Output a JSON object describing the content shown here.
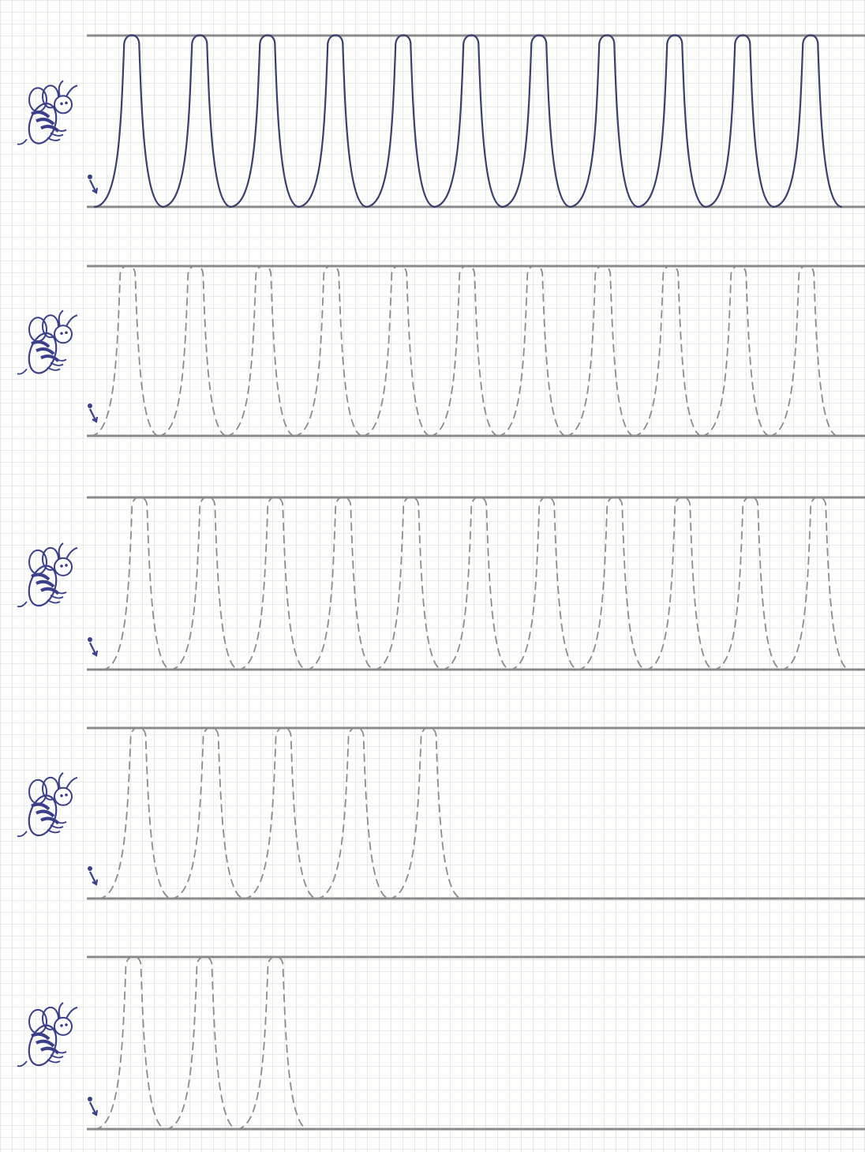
{
  "worksheet": {
    "colors": {
      "paper": "#fdfdfc",
      "grid": "#c9d3cd",
      "guide_line": "#8a8a8a",
      "model_ink": "#3a3f6e",
      "dashed_ink": "#8c8c8c",
      "bee_ink": "#3a3f8a"
    },
    "rows": [
      {
        "style": "solid",
        "loops": 11,
        "icon": "bee-icon"
      },
      {
        "style": "dashed",
        "loops": 11,
        "icon": "bee-icon"
      },
      {
        "style": "dashed",
        "loops": 11,
        "icon": "bee-icon"
      },
      {
        "style": "dashed",
        "loops": 5,
        "icon": "bee-icon"
      },
      {
        "style": "dashed",
        "loops": 3,
        "icon": "bee-icon"
      }
    ]
  }
}
